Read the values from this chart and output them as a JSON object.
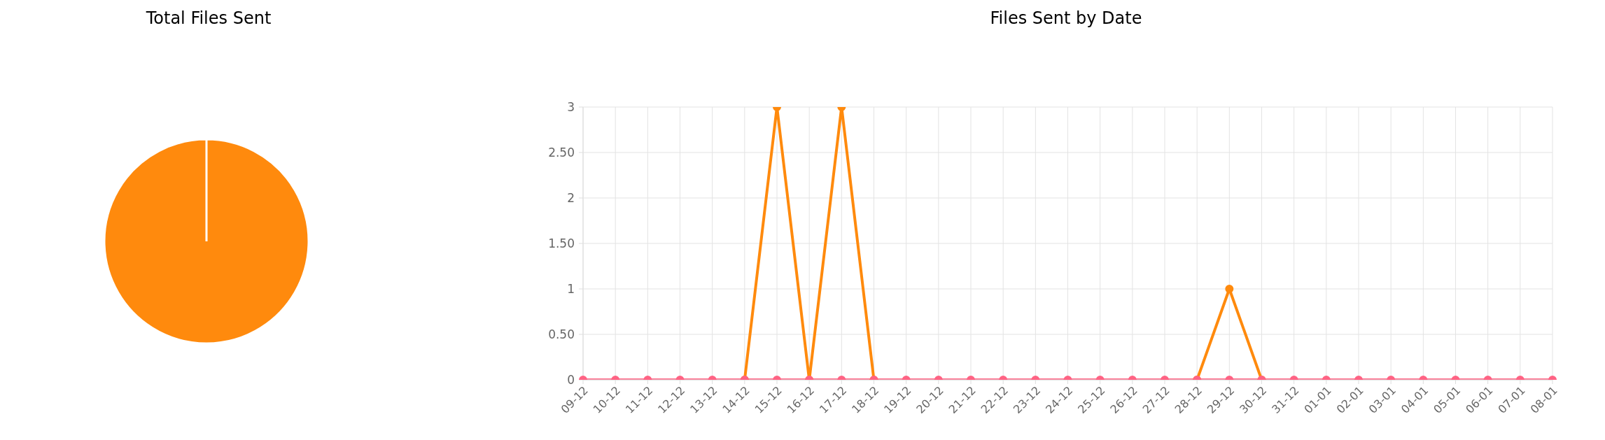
{
  "chart_data": [
    {
      "type": "pie",
      "title": "Total Files Sent",
      "categories": [
        null,
        null
      ],
      "values": [
        0,
        100
      ],
      "colors": [
        "#ff6384",
        "#ff8a0d"
      ]
    },
    {
      "type": "line",
      "title": "Files Sent by Date",
      "categories": [
        "09-12",
        "10-12",
        "11-12",
        "12-12",
        "13-12",
        "14-12",
        "15-12",
        "16-12",
        "17-12",
        "18-12",
        "19-12",
        "20-12",
        "21-12",
        "22-12",
        "23-12",
        "24-12",
        "25-12",
        "26-12",
        "27-12",
        "28-12",
        "29-12",
        "30-12",
        "31-12",
        "01-01",
        "02-01",
        "03-01",
        "04-01",
        "05-01",
        "06-01",
        "07-01",
        "08-01"
      ],
      "series": [
        {
          "color": "#ff6384",
          "values": [
            0,
            0,
            0,
            0,
            0,
            0,
            0,
            0,
            0,
            0,
            0,
            0,
            0,
            0,
            0,
            0,
            0,
            0,
            0,
            0,
            0,
            0,
            0,
            0,
            0,
            0,
            0,
            0,
            0,
            0,
            0
          ]
        },
        {
          "color": "#ff8a0d",
          "values": [
            null,
            null,
            null,
            null,
            null,
            0,
            3,
            0,
            3,
            0,
            null,
            null,
            null,
            null,
            null,
            null,
            null,
            null,
            null,
            0,
            1,
            0,
            null,
            null,
            null,
            null,
            null,
            null,
            null,
            null,
            null
          ]
        }
      ],
      "ylim": [
        0,
        3
      ],
      "yticks": [
        0,
        {
          "value": 0.5,
          "label": "0.50"
        },
        1,
        {
          "value": 1.5,
          "label": "1.50"
        },
        2,
        {
          "value": 2.5,
          "label": "2.50"
        },
        3
      ],
      "grid": true,
      "marker": "circle",
      "line_style": "solid"
    }
  ]
}
